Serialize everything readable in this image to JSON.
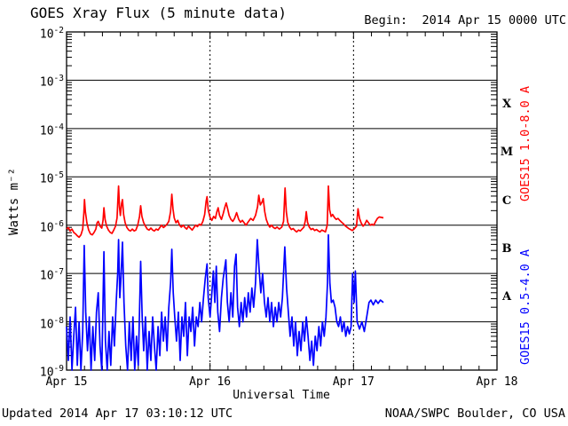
{
  "header": {
    "title": "GOES Xray Flux (5 minute data)",
    "begin_label": "Begin:  2014 Apr 15 0000 UTC"
  },
  "footer": {
    "updated": "Updated 2014 Apr 17 03:10:12 UTC",
    "source": "NOAA/SWPC Boulder, CO USA"
  },
  "colors": {
    "long_channel": "#ff0000",
    "short_channel": "#0000ff",
    "axis": "#000000",
    "background": "#ffffff"
  },
  "chart_data": {
    "type": "line",
    "title": "GOES Xray Flux (5 minute data)",
    "xlabel": "Universal Time",
    "ylabel": "Watts m⁻²",
    "x_unit_hours_since": "2014 Apr 15 0000 UTC",
    "x_range_hours": [
      0,
      72
    ],
    "x_day_ticks": [
      {
        "label": "Apr 15",
        "t": 0
      },
      {
        "label": "Apr 16",
        "t": 24
      },
      {
        "label": "Apr 17",
        "t": 48
      },
      {
        "label": "Apr 18",
        "t": 72
      }
    ],
    "x_minor_tick_hours": 3,
    "y_scale": "log10",
    "y_range_log10": [
      -9,
      -2
    ],
    "y_tick_exponents": [
      -2,
      -3,
      -4,
      -5,
      -6,
      -7,
      -8,
      -9
    ],
    "grid": {
      "horizontal_decades": [
        -3,
        -4,
        -5,
        -6,
        -7,
        -8
      ],
      "vertical_dashed_at_t": [
        24,
        48
      ]
    },
    "flare_classes": [
      {
        "label": "X",
        "log_mid": -3.5
      },
      {
        "label": "M",
        "log_mid": -4.5
      },
      {
        "label": "C",
        "log_mid": -5.5
      },
      {
        "label": "B",
        "log_mid": -6.5
      },
      {
        "label": "A",
        "log_mid": -7.5
      }
    ],
    "legend_position": "right-vertical",
    "series": [
      {
        "name": "GOES15 1.0-8.0 A",
        "color": "#ff0000",
        "t_hours": [
          0.0,
          0.3,
          0.6,
          0.9,
          1.2,
          1.5,
          1.8,
          2.1,
          2.4,
          2.7,
          2.9,
          3.0,
          3.15,
          3.4,
          3.7,
          4.0,
          4.3,
          4.6,
          4.9,
          5.1,
          5.3,
          5.6,
          5.9,
          6.1,
          6.25,
          6.45,
          6.7,
          7.0,
          7.3,
          7.6,
          7.9,
          8.2,
          8.45,
          8.6,
          8.7,
          8.85,
          9.0,
          9.2,
          9.35,
          9.55,
          9.8,
          10.1,
          10.4,
          10.7,
          11.0,
          11.3,
          11.6,
          11.9,
          12.2,
          12.4,
          12.6,
          12.9,
          13.2,
          13.5,
          13.8,
          14.1,
          14.4,
          14.7,
          15.0,
          15.3,
          15.6,
          15.9,
          16.2,
          16.5,
          16.8,
          17.1,
          17.4,
          17.6,
          17.8,
          18.0,
          18.3,
          18.6,
          18.9,
          19.2,
          19.5,
          19.8,
          20.1,
          20.4,
          20.7,
          21.0,
          21.3,
          21.6,
          21.9,
          22.2,
          22.5,
          22.8,
          23.1,
          23.35,
          23.5,
          23.7,
          24.0,
          24.3,
          24.6,
          24.9,
          25.15,
          25.35,
          25.6,
          25.9,
          26.2,
          26.5,
          26.7,
          26.95,
          27.2,
          27.5,
          27.8,
          28.1,
          28.45,
          28.8,
          29.1,
          29.4,
          29.7,
          30.0,
          30.4,
          30.8,
          31.2,
          31.6,
          31.95,
          32.15,
          32.4,
          32.7,
          32.9,
          33.15,
          33.4,
          33.7,
          34.0,
          34.3,
          34.6,
          34.9,
          35.2,
          35.6,
          36.0,
          36.3,
          36.55,
          36.75,
          37.0,
          37.3,
          37.6,
          37.9,
          38.2,
          38.5,
          38.8,
          39.1,
          39.4,
          39.7,
          39.95,
          40.1,
          40.3,
          40.6,
          40.9,
          41.2,
          41.5,
          41.8,
          42.1,
          42.4,
          42.7,
          43.0,
          43.3,
          43.6,
          43.8,
          44.0,
          44.25,
          44.5,
          44.8,
          45.1,
          45.4,
          45.7,
          46.0,
          46.3,
          46.6,
          46.9,
          47.2,
          47.5,
          47.8,
          48.1,
          48.5,
          48.75,
          49.0,
          49.3,
          49.6,
          49.9,
          50.2,
          50.5,
          50.8,
          51.1,
          51.4,
          51.7,
          52.0,
          52.3,
          52.7,
          53.0
        ],
        "log10_flux": [
          -6.08,
          -6.05,
          -6.12,
          -6.08,
          -6.15,
          -6.18,
          -6.22,
          -6.25,
          -6.2,
          -6.08,
          -5.75,
          -5.47,
          -5.72,
          -5.95,
          -6.1,
          -6.18,
          -6.2,
          -6.15,
          -6.08,
          -5.95,
          -5.92,
          -6.02,
          -6.06,
          -5.9,
          -5.64,
          -5.88,
          -6.02,
          -6.1,
          -6.15,
          -6.17,
          -6.1,
          -6.02,
          -5.85,
          -5.45,
          -5.19,
          -5.62,
          -5.8,
          -5.55,
          -5.47,
          -5.78,
          -5.95,
          -6.05,
          -6.1,
          -6.12,
          -6.08,
          -6.12,
          -6.1,
          -6.0,
          -5.82,
          -5.6,
          -5.82,
          -5.95,
          -6.02,
          -6.08,
          -6.1,
          -6.06,
          -6.1,
          -6.12,
          -6.08,
          -6.1,
          -6.05,
          -6.0,
          -6.05,
          -6.02,
          -5.98,
          -5.92,
          -5.72,
          -5.36,
          -5.66,
          -5.85,
          -5.95,
          -5.9,
          -6.0,
          -6.04,
          -6.0,
          -6.05,
          -6.08,
          -6.02,
          -6.06,
          -6.1,
          -6.05,
          -6.0,
          -6.03,
          -5.98,
          -6.0,
          -5.92,
          -5.78,
          -5.5,
          -5.41,
          -5.68,
          -5.84,
          -5.9,
          -5.82,
          -5.86,
          -5.72,
          -5.64,
          -5.8,
          -5.88,
          -5.76,
          -5.62,
          -5.54,
          -5.66,
          -5.8,
          -5.88,
          -5.92,
          -5.86,
          -5.74,
          -5.88,
          -5.94,
          -5.9,
          -5.95,
          -6.0,
          -5.93,
          -5.86,
          -5.9,
          -5.8,
          -5.62,
          -5.38,
          -5.58,
          -5.52,
          -5.45,
          -5.72,
          -5.88,
          -5.98,
          -6.04,
          -6.0,
          -6.05,
          -6.07,
          -6.04,
          -6.08,
          -6.04,
          -5.92,
          -5.23,
          -5.72,
          -5.94,
          -6.04,
          -6.09,
          -6.07,
          -6.11,
          -6.14,
          -6.1,
          -6.12,
          -6.08,
          -6.04,
          -5.9,
          -5.72,
          -5.94,
          -6.04,
          -6.09,
          -6.07,
          -6.11,
          -6.09,
          -6.12,
          -6.14,
          -6.1,
          -6.12,
          -6.14,
          -6.0,
          -5.19,
          -5.68,
          -5.82,
          -5.78,
          -5.84,
          -5.88,
          -5.86,
          -5.9,
          -5.94,
          -5.97,
          -6.01,
          -6.04,
          -6.07,
          -6.09,
          -6.11,
          -6.08,
          -6.02,
          -5.66,
          -5.86,
          -5.96,
          -6.02,
          -5.98,
          -5.9,
          -5.95,
          -6.0,
          -5.98,
          -6.0,
          -5.92,
          -5.86,
          -5.83,
          -5.84,
          -5.85
        ]
      },
      {
        "name": "GOES15 0.5-4.0 A",
        "color": "#0000ff",
        "t_hours": [
          0.0,
          0.3,
          0.6,
          0.9,
          1.2,
          1.5,
          1.8,
          2.1,
          2.4,
          2.7,
          2.95,
          3.2,
          3.5,
          3.8,
          4.1,
          4.4,
          4.7,
          5.0,
          5.3,
          5.6,
          5.9,
          6.25,
          6.5,
          6.8,
          7.1,
          7.4,
          7.7,
          8.0,
          8.3,
          8.55,
          8.7,
          8.9,
          9.1,
          9.35,
          9.6,
          9.9,
          10.2,
          10.5,
          10.8,
          11.1,
          11.4,
          11.7,
          12.0,
          12.2,
          12.4,
          12.65,
          12.9,
          13.2,
          13.5,
          13.8,
          14.1,
          14.4,
          14.7,
          15.0,
          15.3,
          15.6,
          15.9,
          16.2,
          16.5,
          16.8,
          17.1,
          17.4,
          17.6,
          17.85,
          18.1,
          18.4,
          18.7,
          19.0,
          19.3,
          19.6,
          19.9,
          20.2,
          20.5,
          20.8,
          21.1,
          21.4,
          21.7,
          22.0,
          22.3,
          22.6,
          22.9,
          23.2,
          23.5,
          23.7,
          24.0,
          24.3,
          24.55,
          24.8,
          25.05,
          25.3,
          25.6,
          25.9,
          26.2,
          26.65,
          26.9,
          27.2,
          27.5,
          27.8,
          28.1,
          28.35,
          28.6,
          28.9,
          29.2,
          29.5,
          29.8,
          30.1,
          30.4,
          30.7,
          31.0,
          31.3,
          31.6,
          31.9,
          32.2,
          32.5,
          32.8,
          33.1,
          33.4,
          33.7,
          34.0,
          34.3,
          34.6,
          34.9,
          35.2,
          35.5,
          35.8,
          36.1,
          36.5,
          36.8,
          37.1,
          37.4,
          37.7,
          38.0,
          38.3,
          38.6,
          38.9,
          39.2,
          39.5,
          39.8,
          40.1,
          40.4,
          40.7,
          41.0,
          41.3,
          41.6,
          41.9,
          42.2,
          42.5,
          42.8,
          43.1,
          43.4,
          43.65,
          43.8,
          44.05,
          44.3,
          44.6,
          44.9,
          45.2,
          45.5,
          45.8,
          46.1,
          46.4,
          46.7,
          47.0,
          47.3,
          47.6,
          47.85,
          48.1,
          48.3,
          48.6,
          49.0,
          49.4,
          49.8,
          50.2,
          50.6,
          50.9,
          51.3,
          51.7,
          52.1,
          52.5,
          53.0
        ],
        "log10_flux": [
          -8.1,
          -8.8,
          -7.9,
          -9.0,
          -8.3,
          -7.7,
          -8.9,
          -8.0,
          -9.0,
          -8.2,
          -6.42,
          -7.8,
          -8.6,
          -7.9,
          -9.0,
          -8.1,
          -8.8,
          -7.8,
          -7.4,
          -8.5,
          -9.0,
          -6.55,
          -8.4,
          -9.0,
          -8.2,
          -8.9,
          -7.9,
          -8.5,
          -7.6,
          -7.0,
          -6.3,
          -7.5,
          -7.1,
          -6.35,
          -7.6,
          -8.5,
          -9.0,
          -8.0,
          -8.8,
          -7.9,
          -9.0,
          -8.3,
          -8.9,
          -7.8,
          -6.75,
          -7.9,
          -8.6,
          -7.9,
          -9.0,
          -8.2,
          -8.8,
          -7.9,
          -8.5,
          -9.0,
          -8.1,
          -8.7,
          -7.8,
          -8.4,
          -7.9,
          -8.6,
          -7.7,
          -7.2,
          -6.5,
          -7.4,
          -7.9,
          -8.4,
          -7.8,
          -8.8,
          -7.9,
          -8.3,
          -7.6,
          -8.7,
          -7.9,
          -8.2,
          -7.7,
          -8.5,
          -7.9,
          -8.1,
          -7.6,
          -8.0,
          -7.5,
          -7.1,
          -6.8,
          -7.5,
          -7.9,
          -7.4,
          -6.95,
          -7.6,
          -6.85,
          -7.8,
          -8.2,
          -7.5,
          -7.1,
          -6.72,
          -7.6,
          -8.0,
          -7.4,
          -7.9,
          -6.85,
          -6.6,
          -7.7,
          -8.1,
          -7.6,
          -8.0,
          -7.5,
          -7.9,
          -7.4,
          -7.8,
          -7.3,
          -7.7,
          -7.2,
          -6.3,
          -6.9,
          -7.4,
          -7.0,
          -7.6,
          -7.9,
          -7.5,
          -8.0,
          -7.6,
          -8.1,
          -7.7,
          -8.0,
          -7.6,
          -7.9,
          -7.5,
          -6.45,
          -7.3,
          -7.8,
          -8.3,
          -7.9,
          -8.5,
          -8.0,
          -8.7,
          -8.2,
          -8.6,
          -8.0,
          -8.4,
          -7.9,
          -8.3,
          -8.8,
          -8.4,
          -8.9,
          -8.3,
          -8.6,
          -8.1,
          -8.5,
          -8.0,
          -8.3,
          -7.9,
          -7.2,
          -6.2,
          -7.2,
          -7.6,
          -7.55,
          -7.7,
          -8.0,
          -8.1,
          -7.9,
          -8.2,
          -8.0,
          -8.3,
          -8.1,
          -8.25,
          -8.1,
          -7.0,
          -7.6,
          -6.95,
          -8.0,
          -8.15,
          -8.0,
          -8.2,
          -7.9,
          -7.6,
          -7.55,
          -7.65,
          -7.55,
          -7.62,
          -7.55,
          -7.6
        ]
      }
    ]
  }
}
